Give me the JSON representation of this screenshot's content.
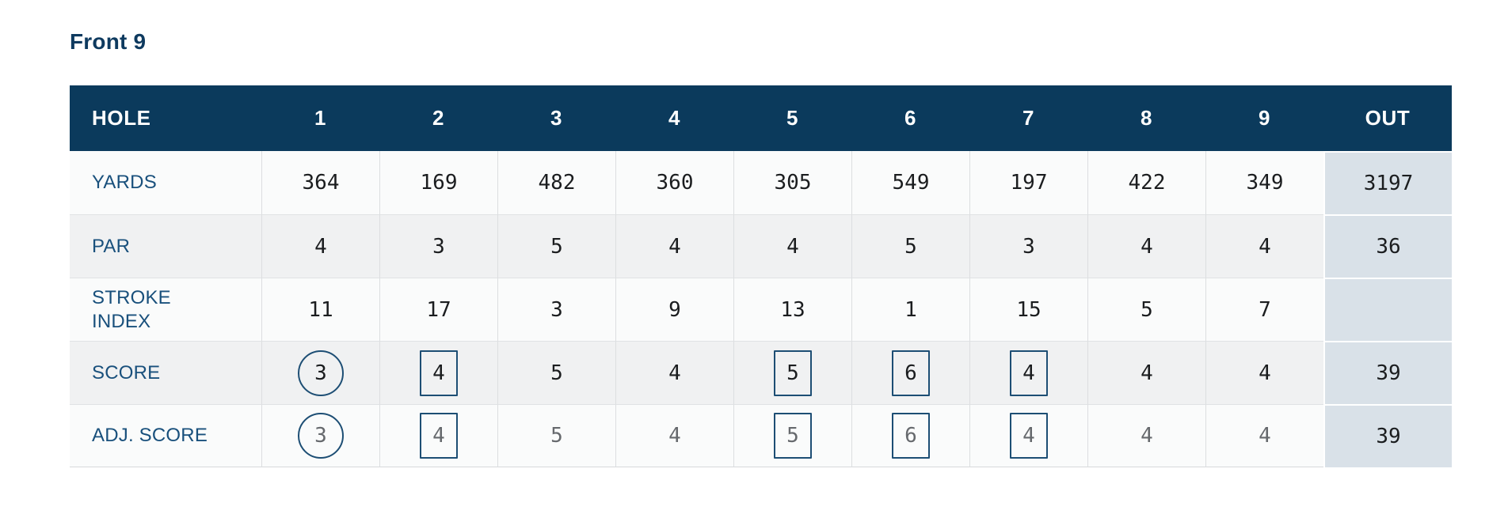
{
  "page": {
    "title": "Front 9"
  },
  "colors": {
    "header_bg": "#0b3a5c",
    "header_text": "#ffffff",
    "title_text": "#0e3a5f",
    "label_text": "#19507c",
    "number_text": "#1b1d1f",
    "muted_number_text": "#66696d",
    "out_column_bg": "#d9e1e8",
    "row_bg_light": "#fafbfb",
    "row_bg_dark": "#f0f1f2",
    "grid_line": "#dcdee0",
    "mark_outline": "#1d4e74"
  },
  "table": {
    "header": [
      "HOLE",
      "1",
      "2",
      "3",
      "4",
      "5",
      "6",
      "7",
      "8",
      "9",
      "OUT"
    ],
    "rows": [
      {
        "label": "YARDS",
        "values": [
          "364",
          "169",
          "482",
          "360",
          "305",
          "549",
          "197",
          "422",
          "349"
        ],
        "out": "3197",
        "marks": [
          "none",
          "none",
          "none",
          "none",
          "none",
          "none",
          "none",
          "none",
          "none"
        ],
        "muted": false
      },
      {
        "label": "PAR",
        "values": [
          "4",
          "3",
          "5",
          "4",
          "4",
          "5",
          "3",
          "4",
          "4"
        ],
        "out": "36",
        "marks": [
          "none",
          "none",
          "none",
          "none",
          "none",
          "none",
          "none",
          "none",
          "none"
        ],
        "muted": false
      },
      {
        "label": "STROKE INDEX",
        "values": [
          "11",
          "17",
          "3",
          "9",
          "13",
          "1",
          "15",
          "5",
          "7"
        ],
        "out": "",
        "marks": [
          "none",
          "none",
          "none",
          "none",
          "none",
          "none",
          "none",
          "none",
          "none"
        ],
        "muted": false
      },
      {
        "label": "SCORE",
        "values": [
          "3",
          "4",
          "5",
          "4",
          "5",
          "6",
          "4",
          "4",
          "4"
        ],
        "out": "39",
        "marks": [
          "circle",
          "square",
          "none",
          "none",
          "square",
          "square",
          "square",
          "none",
          "none"
        ],
        "muted": false
      },
      {
        "label": "ADJ. SCORE",
        "values": [
          "3",
          "4",
          "5",
          "4",
          "5",
          "6",
          "4",
          "4",
          "4"
        ],
        "out": "39",
        "marks": [
          "circle",
          "square",
          "none",
          "none",
          "square",
          "square",
          "square",
          "none",
          "none"
        ],
        "muted": true
      }
    ]
  }
}
